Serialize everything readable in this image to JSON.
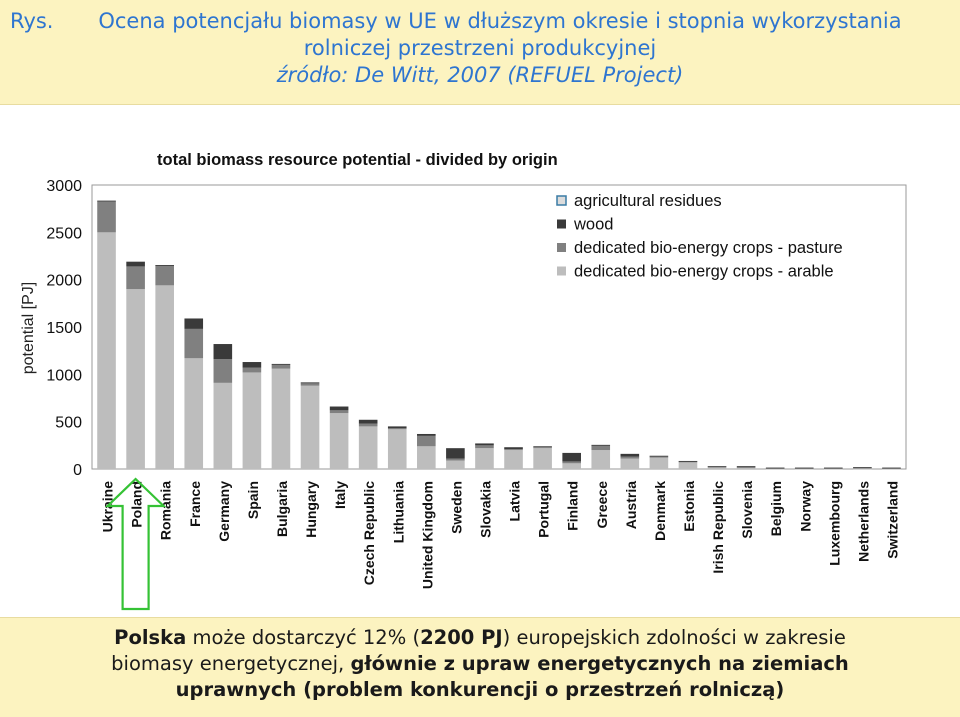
{
  "header": {
    "prefix": "Rys.",
    "title_line1": "Ocena potencjału biomasy w UE w dłuższym okresie i stopnia wykorzystania",
    "title_line2": "rolniczej przestrzeni produkcyjnej",
    "source": "źródło: De Witt, 2007 (REFUEL Project)"
  },
  "colors": {
    "header_bg": "#fcf3c0",
    "title_text": "#2e75d0",
    "agricultural_residues": "#dcdcdc",
    "wood": "#3a3a3a",
    "pasture": "#808080",
    "arable": "#bdbdbd",
    "arrow": "#35c235"
  },
  "chart_data": {
    "type": "bar",
    "stacked": true,
    "title": "total biomass resource potential - divided by origin",
    "ylabel": "potential [PJ]",
    "xlabel": "",
    "ylim": [
      0,
      3000
    ],
    "yticks": [
      0,
      500,
      1000,
      1500,
      2000,
      2500,
      3000
    ],
    "legend_position": "top-right",
    "categories": [
      "Ukraine",
      "Poland",
      "Romania",
      "France",
      "Germany",
      "Spain",
      "Bulgaria",
      "Hungary",
      "Italy",
      "Czech Republic",
      "Lithuania",
      "United Kingdom",
      "Sweden",
      "Slovakia",
      "Latvia",
      "Portugal",
      "Finland",
      "Greece",
      "Austria",
      "Denmark",
      "Estonia",
      "Irish Republic",
      "Slovenia",
      "Belgium",
      "Norway",
      "Luxembourg",
      "Netherlands",
      "Switzerland"
    ],
    "series": [
      {
        "name": "dedicated bio-energy crops - arable",
        "colorKey": "arable",
        "values": [
          2500,
          1900,
          1940,
          1170,
          910,
          1020,
          1060,
          880,
          590,
          450,
          420,
          240,
          90,
          220,
          200,
          220,
          60,
          200,
          110,
          120,
          70,
          15,
          10,
          5,
          5,
          5,
          5,
          5
        ]
      },
      {
        "name": "dedicated bio-energy crops - pasture",
        "colorKey": "pasture",
        "values": [
          330,
          240,
          210,
          310,
          250,
          50,
          40,
          30,
          30,
          30,
          10,
          110,
          20,
          30,
          10,
          10,
          20,
          50,
          20,
          10,
          10,
          10,
          10,
          5,
          5,
          5,
          10,
          5
        ]
      },
      {
        "name": "wood",
        "colorKey": "wood",
        "values": [
          5,
          50,
          5,
          110,
          160,
          60,
          10,
          5,
          40,
          40,
          20,
          20,
          110,
          20,
          20,
          10,
          90,
          5,
          30,
          10,
          5,
          5,
          10,
          5,
          5,
          5,
          5,
          5
        ]
      },
      {
        "name": "agricultural residues",
        "colorKey": "agricultural_residues",
        "values": [
          0,
          0,
          0,
          0,
          0,
          0,
          0,
          0,
          0,
          0,
          0,
          0,
          0,
          0,
          0,
          0,
          0,
          0,
          0,
          0,
          0,
          0,
          0,
          0,
          0,
          0,
          0,
          0
        ]
      }
    ],
    "legend_order": [
      "agricultural residues",
      "wood",
      "dedicated bio-energy crops - pasture",
      "dedicated bio-energy crops - arable"
    ],
    "highlight_category": "Poland"
  },
  "footer": {
    "p1_bold": "Polska",
    "p1_text": " może dostarczyć 12%  (",
    "p1_bold2": "2200 PJ",
    "p1_text2": ") europejskich zdolności w zakresie",
    "p2_text": "biomasy energetycznej, ",
    "p2_bold": "głównie z upraw energetycznych na ziemiach",
    "p3_bold": "uprawnych (problem konkurencji o przestrzeń rolniczą)"
  }
}
